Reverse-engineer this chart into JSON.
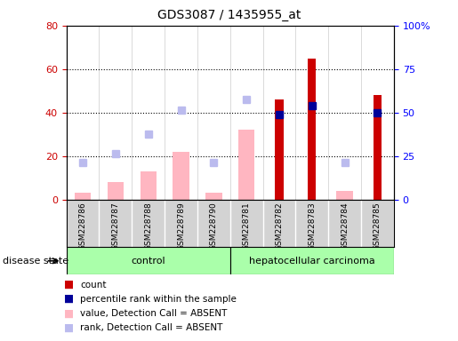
{
  "title": "GDS3087 / 1435955_at",
  "samples": [
    "GSM228786",
    "GSM228787",
    "GSM228788",
    "GSM228789",
    "GSM228790",
    "GSM228781",
    "GSM228782",
    "GSM228783",
    "GSM228784",
    "GSM228785"
  ],
  "count_values": [
    null,
    null,
    null,
    null,
    null,
    null,
    46,
    65,
    null,
    48
  ],
  "percentile_rank": [
    null,
    null,
    null,
    null,
    null,
    null,
    49,
    54,
    null,
    50
  ],
  "value_absent": [
    3,
    8,
    13,
    22,
    3,
    32,
    null,
    null,
    4,
    null
  ],
  "rank_absent": [
    17,
    21,
    30,
    41,
    17,
    46,
    null,
    null,
    17,
    null
  ],
  "ylim_left": [
    0,
    80
  ],
  "ylim_right": [
    0,
    100
  ],
  "yticks_left": [
    0,
    20,
    40,
    60,
    80
  ],
  "yticks_right": [
    0,
    25,
    50,
    75,
    100
  ],
  "yticklabels_right": [
    "0",
    "25",
    "50",
    "75",
    "100%"
  ],
  "color_count": "#CC0000",
  "color_percentile": "#000099",
  "color_value_absent": "#FFB6C1",
  "color_rank_absent": "#BBBBEE",
  "control_color": "#AAFFAA",
  "cancer_color": "#AAFFAA",
  "marker_size": 6
}
